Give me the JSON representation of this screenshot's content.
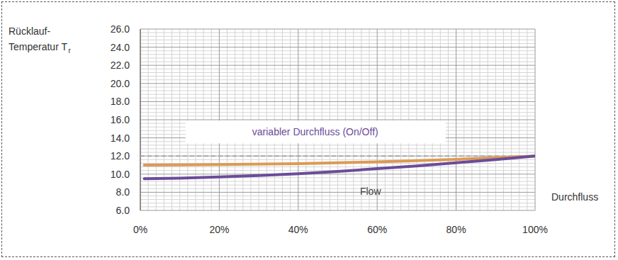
{
  "chart_data": {
    "type": "line",
    "y_label": [
      "Rücklauf-",
      "Temperatur T"
    ],
    "y_label_subscript": "r",
    "x_label": "Durchfluss",
    "annotations": [
      {
        "text": "variabler Durchfluss (On/Off)",
        "x": 44.3,
        "y": 14.65,
        "color": "#6b4c9a"
      },
      {
        "text": "Flow",
        "x": 58.3,
        "y": 8.1,
        "color": "#444444"
      }
    ],
    "series": [
      {
        "x": [
          0,
          100
        ],
        "values": [
          12.0,
          12.0
        ],
        "color": "#aaaaaa",
        "line_style": "dashed"
      },
      {
        "x": [
          1,
          20,
          40,
          60,
          80,
          100
        ],
        "values": [
          11.0,
          11.05,
          11.15,
          11.35,
          11.62,
          12.0
        ],
        "color": "#dc9a55",
        "line_style": "solid"
      },
      {
        "x": [
          1,
          10,
          20,
          30,
          40,
          50,
          60,
          70,
          80,
          90,
          100
        ],
        "values": [
          9.5,
          9.55,
          9.7,
          9.85,
          10.05,
          10.3,
          10.6,
          10.9,
          11.25,
          11.6,
          12.0
        ],
        "color": "#6b4c9a",
        "line_style": "solid"
      }
    ],
    "xlim": [
      0,
      100
    ],
    "xticks": [
      {
        "value": 0,
        "label": "0%"
      },
      {
        "value": 20,
        "label": "20%"
      },
      {
        "value": 40,
        "label": "40%"
      },
      {
        "value": 60,
        "label": "60%"
      },
      {
        "value": 80,
        "label": "80%"
      },
      {
        "value": 100,
        "label": "100%"
      }
    ],
    "ylim": [
      6,
      26
    ],
    "yticks": [
      {
        "value": 6,
        "label": "6.0"
      },
      {
        "value": 8,
        "label": "8.0"
      },
      {
        "value": 10,
        "label": "10.0"
      },
      {
        "value": 12,
        "label": "12.0"
      },
      {
        "value": 14,
        "label": "14.0"
      },
      {
        "value": 16,
        "label": "16.0"
      },
      {
        "value": 18,
        "label": "18.0"
      },
      {
        "value": 20,
        "label": "20.0"
      },
      {
        "value": 22,
        "label": "22.0"
      },
      {
        "value": 24,
        "label": "24.0"
      },
      {
        "value": 26,
        "label": "26.0"
      }
    ],
    "grid": true
  }
}
